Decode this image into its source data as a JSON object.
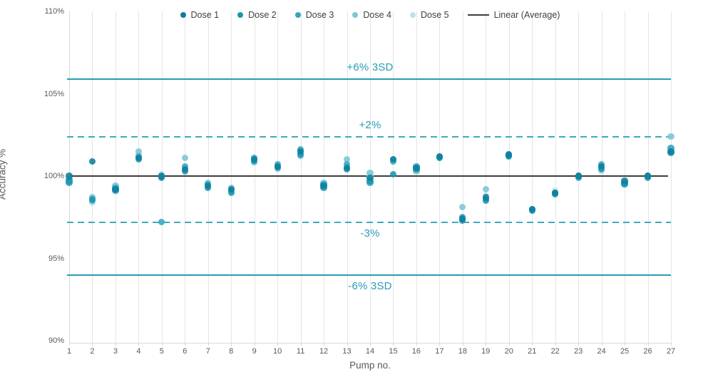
{
  "chart_data": {
    "type": "scatter",
    "title": "",
    "xlabel": "Pump no.",
    "ylabel": "Accuracy %",
    "x_categories": [
      1,
      2,
      3,
      4,
      5,
      6,
      7,
      8,
      9,
      10,
      11,
      12,
      13,
      14,
      15,
      16,
      17,
      18,
      19,
      20,
      21,
      22,
      23,
      24,
      25,
      26,
      27
    ],
    "ylim": [
      90,
      110
    ],
    "yticks": {
      "values": [
        110,
        105,
        100,
        95,
        90
      ],
      "labels": [
        "110%",
        "105%",
        "100%",
        "95%",
        "90%"
      ]
    },
    "grid": "vertical-only",
    "legend_position": "top",
    "series": [
      {
        "name": "Dose 1",
        "color": "#0e7e9c",
        "values": [
          100.0,
          100.9,
          99.2,
          101.1,
          100.0,
          100.4,
          99.4,
          99.2,
          101.0,
          100.6,
          101.5,
          99.4,
          100.5,
          99.9,
          101.0,
          100.5,
          101.2,
          97.4,
          98.7,
          101.3,
          98.0,
          99.0,
          100.0,
          100.6,
          99.7,
          100.0,
          101.5
        ]
      },
      {
        "name": "Dose 2",
        "color": "#1b95af",
        "values": [
          99.7,
          98.6,
          99.1,
          101.0,
          99.9,
          100.3,
          99.3,
          99.0,
          100.9,
          100.5,
          101.3,
          99.3,
          100.4,
          99.7,
          100.1,
          100.4,
          101.1,
          97.3,
          98.5,
          101.2,
          97.9,
          98.9,
          100.0,
          100.4,
          99.5,
          100.0,
          101.4
        ]
      },
      {
        "name": "Dose 3",
        "color": "#35a6bf",
        "values": [
          99.6,
          98.5,
          99.3,
          101.2,
          97.2,
          100.6,
          99.5,
          99.1,
          101.1,
          100.7,
          101.6,
          99.5,
          100.7,
          99.6,
          100.9,
          100.6,
          101.2,
          97.5,
          98.6,
          101.3,
          98.0,
          99.0,
          99.9,
          100.7,
          99.6,
          99.9,
          101.7
        ]
      },
      {
        "name": "Dose 4",
        "color": "#7cc5d6",
        "values": [
          99.8,
          98.7,
          99.4,
          101.5,
          100.0,
          101.1,
          99.6,
          99.3,
          101.0,
          100.6,
          101.4,
          99.6,
          101.0,
          100.2,
          101.0,
          100.3,
          101.1,
          98.1,
          99.2,
          101.2,
          97.9,
          98.9,
          100.0,
          100.5,
          99.5,
          99.9,
          102.4
        ]
      },
      {
        "name": "Dose 5",
        "color": "#bce2eb",
        "values": [
          99.6,
          98.4,
          99.2,
          101.3,
          100.1,
          100.5,
          99.3,
          99.1,
          100.8,
          100.4,
          101.2,
          99.4,
          100.6,
          100.0,
          100.9,
          100.4,
          101.2,
          97.3,
          98.8,
          101.3,
          98.0,
          99.1,
          100.0,
          100.3,
          99.6,
          100.0,
          101.6
        ]
      }
    ],
    "average_line": {
      "label": "Linear (Average)",
      "value": 100.0,
      "color": "#3d3d3d"
    },
    "reference_lines": [
      {
        "label": "+6% 3SD",
        "value": 105.9,
        "style": "solid",
        "label_position": "above"
      },
      {
        "label": "+2%",
        "value": 102.4,
        "style": "dashed",
        "label_position": "above"
      },
      {
        "label": "-3%",
        "value": 97.2,
        "style": "dashed",
        "label_position": "below"
      },
      {
        "label": "-6% 3SD",
        "value": 94.0,
        "style": "solid",
        "label_position": "below"
      }
    ],
    "colors": {
      "accent": "#2a9cb5",
      "dashed_accent": "#3fa9c0",
      "grid": "#e4e4e4",
      "axis": "#d9d9d9",
      "tick_text": "#595959",
      "average_line": "#3d3d3d"
    }
  }
}
